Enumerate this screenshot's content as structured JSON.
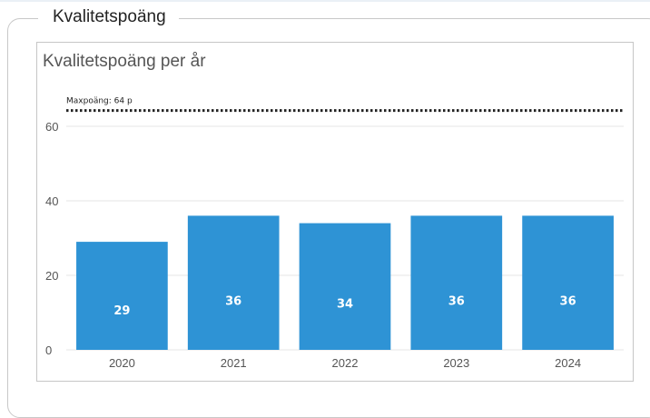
{
  "section": {
    "title": "Kvalitetspoäng"
  },
  "chart_data": {
    "type": "bar",
    "title": "Kvalitetspoäng per år",
    "categories": [
      "2020",
      "2021",
      "2022",
      "2023",
      "2024"
    ],
    "values": [
      29,
      36,
      34,
      36,
      36
    ],
    "ylim": [
      0,
      64
    ],
    "yticks": [
      0,
      20,
      40,
      60
    ],
    "grid": true,
    "reference_line": {
      "value": 64,
      "label": "Maxpoäng: 64 p",
      "style": "dotted"
    },
    "colors": {
      "bar": "#2e93d5",
      "bar_label": "#ffffff",
      "grid": "#e6e6e6",
      "axis_text": "#555555",
      "reference": "#222222"
    }
  }
}
